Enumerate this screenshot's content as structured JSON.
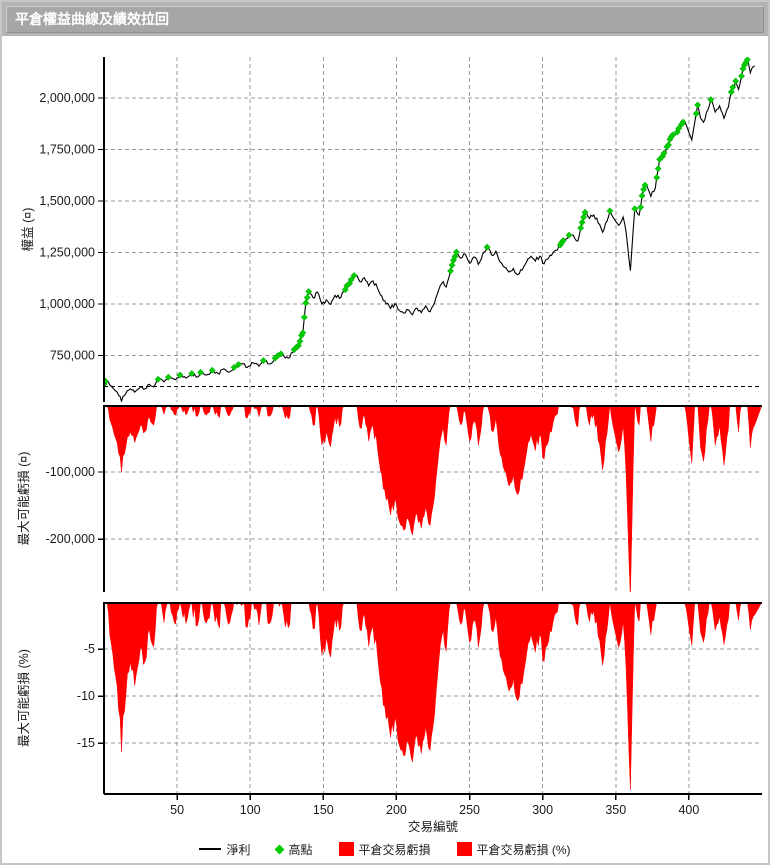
{
  "window": {
    "title": "平倉權益曲線及績效拉回"
  },
  "xaxis": {
    "label": "交易編號",
    "xlim": [
      0,
      450
    ],
    "ticks": [
      {
        "v": 50,
        "label": "50"
      },
      {
        "v": 100,
        "label": "100"
      },
      {
        "v": 150,
        "label": "150"
      },
      {
        "v": 200,
        "label": "200"
      },
      {
        "v": 250,
        "label": "250"
      },
      {
        "v": 300,
        "label": "300"
      },
      {
        "v": 350,
        "label": "350"
      },
      {
        "v": 400,
        "label": "400"
      }
    ]
  },
  "chart_data": [
    {
      "type": "line",
      "name": "equity-curve",
      "ylabel": "權益 (¤)",
      "ylim": [
        524000,
        2199000
      ],
      "yticks": [
        {
          "v": 2000000,
          "label": "2,000,000"
        },
        {
          "v": 1750000,
          "label": "1,750,000"
        },
        {
          "v": 1500000,
          "label": "1,500,000"
        },
        {
          "v": 1250000,
          "label": "1,250,000"
        },
        {
          "v": 1000000,
          "label": "1,000,000"
        },
        {
          "v": 750000,
          "label": "750,000"
        }
      ],
      "baseline": {
        "v": 600000
      },
      "series": [
        {
          "name": "淨利",
          "type": "line",
          "color": "#000000"
        },
        {
          "name": "高點",
          "type": "scatter",
          "color": "#00CC00"
        }
      ],
      "trades": 446,
      "noise_amp": 14000,
      "high_marker_threshold": 6000,
      "equity_anchors": [
        [
          0,
          610000
        ],
        [
          2,
          628000
        ],
        [
          5,
          600000
        ],
        [
          8,
          578000
        ],
        [
          10,
          556000
        ],
        [
          12,
          528000
        ],
        [
          15,
          566000
        ],
        [
          18,
          588000
        ],
        [
          21,
          572000
        ],
        [
          25,
          598000
        ],
        [
          28,
          588000
        ],
        [
          31,
          610000
        ],
        [
          34,
          598000
        ],
        [
          38,
          636000
        ],
        [
          41,
          622000
        ],
        [
          45,
          648000
        ],
        [
          48,
          634000
        ],
        [
          52,
          655000
        ],
        [
          56,
          640000
        ],
        [
          60,
          662000
        ],
        [
          63,
          645000
        ],
        [
          67,
          670000
        ],
        [
          70,
          655000
        ],
        [
          74,
          678000
        ],
        [
          78,
          662000
        ],
        [
          82,
          685000
        ],
        [
          86,
          670000
        ],
        [
          90,
          695000
        ],
        [
          95,
          710000
        ],
        [
          98,
          692000
        ],
        [
          102,
          715000
        ],
        [
          106,
          698000
        ],
        [
          110,
          725000
        ],
        [
          114,
          710000
        ],
        [
          118,
          738000
        ],
        [
          122,
          755000
        ],
        [
          126,
          737000
        ],
        [
          130,
          778000
        ],
        [
          133,
          798000
        ],
        [
          136,
          860000
        ],
        [
          138,
          1005000
        ],
        [
          140,
          1060000
        ],
        [
          143,
          1030000
        ],
        [
          146,
          1058000
        ],
        [
          149,
          1000000
        ],
        [
          152,
          1020000
        ],
        [
          155,
          998000
        ],
        [
          158,
          1042000
        ],
        [
          161,
          1028000
        ],
        [
          164,
          1062000
        ],
        [
          167,
          1092000
        ],
        [
          170,
          1122000
        ],
        [
          172,
          1142000
        ],
        [
          175,
          1108000
        ],
        [
          178,
          1128000
        ],
        [
          181,
          1088000
        ],
        [
          184,
          1112000
        ],
        [
          187,
          1078000
        ],
        [
          190,
          1038000
        ],
        [
          193,
          1000000
        ],
        [
          196,
          978000
        ],
        [
          199,
          1002000
        ],
        [
          202,
          968000
        ],
        [
          205,
          955000
        ],
        [
          208,
          972000
        ],
        [
          211,
          948000
        ],
        [
          214,
          980000
        ],
        [
          217,
          958000
        ],
        [
          220,
          990000
        ],
        [
          223,
          962000
        ],
        [
          226,
          1005000
        ],
        [
          229,
          1070000
        ],
        [
          232,
          1108000
        ],
        [
          234,
          1082000
        ],
        [
          237,
          1160000
        ],
        [
          239,
          1212000
        ],
        [
          241,
          1252000
        ],
        [
          244,
          1222000
        ],
        [
          247,
          1242000
        ],
        [
          250,
          1198000
        ],
        [
          253,
          1228000
        ],
        [
          256,
          1192000
        ],
        [
          259,
          1242000
        ],
        [
          262,
          1276000
        ],
        [
          265,
          1238000
        ],
        [
          268,
          1256000
        ],
        [
          271,
          1202000
        ],
        [
          274,
          1178000
        ],
        [
          277,
          1155000
        ],
        [
          280,
          1172000
        ],
        [
          283,
          1142000
        ],
        [
          286,
          1165000
        ],
        [
          289,
          1205000
        ],
        [
          292,
          1232000
        ],
        [
          295,
          1208000
        ],
        [
          298,
          1232000
        ],
        [
          301,
          1195000
        ],
        [
          304,
          1222000
        ],
        [
          307,
          1248000
        ],
        [
          310,
          1262000
        ],
        [
          313,
          1298000
        ],
        [
          316,
          1315000
        ],
        [
          319,
          1338000
        ],
        [
          322,
          1318000
        ],
        [
          324,
          1305000
        ],
        [
          329,
          1445000
        ],
        [
          332,
          1415000
        ],
        [
          335,
          1432000
        ],
        [
          338,
          1392000
        ],
        [
          341,
          1348000
        ],
        [
          344,
          1402000
        ],
        [
          346,
          1452000
        ],
        [
          349,
          1412000
        ],
        [
          352,
          1382000
        ],
        [
          355,
          1422000
        ],
        [
          357,
          1352000
        ],
        [
          360,
          1162000
        ],
        [
          363,
          1462000
        ],
        [
          366,
          1432000
        ],
        [
          369,
          1556000
        ],
        [
          371,
          1576000
        ],
        [
          374,
          1522000
        ],
        [
          377,
          1562000
        ],
        [
          380,
          1702000
        ],
        [
          383,
          1732000
        ],
        [
          386,
          1772000
        ],
        [
          388,
          1812000
        ],
        [
          390,
          1822000
        ],
        [
          393,
          1852000
        ],
        [
          395,
          1872000
        ],
        [
          397,
          1882000
        ],
        [
          400,
          1832000
        ],
        [
          402,
          1796000
        ],
        [
          406,
          1966000
        ],
        [
          408,
          1902000
        ],
        [
          410,
          1882000
        ],
        [
          413,
          1942000
        ],
        [
          415,
          1992000
        ],
        [
          418,
          1932000
        ],
        [
          421,
          1962000
        ],
        [
          424,
          1902000
        ],
        [
          427,
          1956000
        ],
        [
          430,
          2052000
        ],
        [
          432,
          2082000
        ],
        [
          434,
          2042000
        ],
        [
          437,
          2142000
        ],
        [
          440,
          2186000
        ],
        [
          442,
          2122000
        ],
        [
          445,
          2156000
        ]
      ]
    },
    {
      "type": "area",
      "name": "drawdown-currency",
      "ylabel": "最大可能虧損 (¤)",
      "ylim": [
        -279000,
        0
      ],
      "yticks": [
        {
          "v": -100000,
          "label": "-100,000"
        },
        {
          "v": -200000,
          "label": "-200,000"
        }
      ],
      "derived": "equity_drawdown",
      "series_label": "平倉交易虧損",
      "color": "#FF0000"
    },
    {
      "type": "area",
      "name": "drawdown-percent",
      "ylabel": "最大可能虧損 (%)",
      "ylim": [
        -20.4,
        0
      ],
      "yticks": [
        {
          "v": -5,
          "label": "-5"
        },
        {
          "v": -10,
          "label": "-10"
        },
        {
          "v": -15,
          "label": "-15"
        }
      ],
      "derived": "equity_drawdown_percent",
      "series_label": "平倉交易虧損 (%)",
      "color": "#FF0000"
    }
  ],
  "legend": {
    "items": [
      {
        "label": "淨利",
        "marker": "line",
        "color": "#000000"
      },
      {
        "label": "高點",
        "marker": "diamond",
        "color": "#00CC00"
      },
      {
        "label": "平倉交易虧損",
        "marker": "square",
        "color": "#FF0000"
      },
      {
        "label": "平倉交易虧損 (%)",
        "marker": "square",
        "color": "#FF0000"
      }
    ]
  },
  "colors": {
    "line": "#000000",
    "high": "#00CC00",
    "drawdown": "#FF0000",
    "grid": "#999999",
    "axis": "#000000",
    "text": "#1a1a1a",
    "baseline": "#000000",
    "titlebar_bg": "#a6a6a6",
    "title_text": "#ffffff"
  }
}
